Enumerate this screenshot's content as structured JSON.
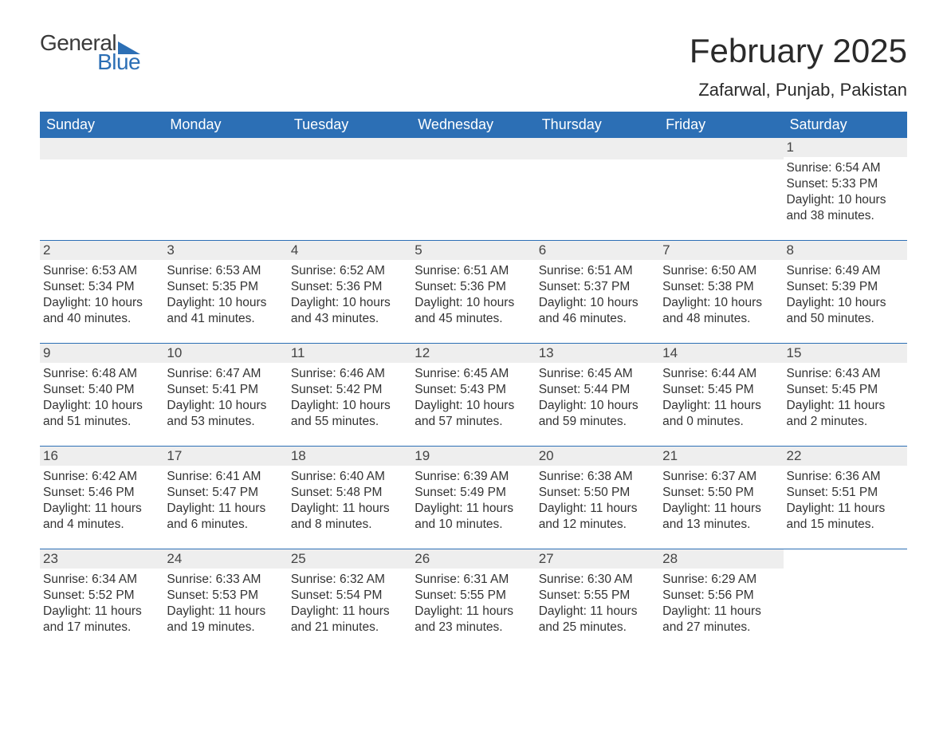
{
  "logo": {
    "text1": "General",
    "text2": "Blue"
  },
  "title": "February 2025",
  "location": "Zafarwal, Punjab, Pakistan",
  "colors": {
    "header_bg": "#2c6fb5",
    "header_fg": "#ffffff",
    "stripe_bg": "#eeeeee",
    "rule": "#2c6fb5",
    "text": "#333333",
    "page_bg": "#ffffff"
  },
  "typography": {
    "title_fontsize_pt": 32,
    "location_fontsize_pt": 17,
    "header_fontsize_pt": 14,
    "cell_fontsize_pt": 12,
    "daynum_fontsize_pt": 13
  },
  "weekday_headers": [
    "Sunday",
    "Monday",
    "Tuesday",
    "Wednesday",
    "Thursday",
    "Friday",
    "Saturday"
  ],
  "weeks": [
    [
      null,
      null,
      null,
      null,
      null,
      null,
      {
        "n": "1",
        "sunrise": "Sunrise: 6:54 AM",
        "sunset": "Sunset: 5:33 PM",
        "daylight": "Daylight: 10 hours and 38 minutes."
      }
    ],
    [
      {
        "n": "2",
        "sunrise": "Sunrise: 6:53 AM",
        "sunset": "Sunset: 5:34 PM",
        "daylight": "Daylight: 10 hours and 40 minutes."
      },
      {
        "n": "3",
        "sunrise": "Sunrise: 6:53 AM",
        "sunset": "Sunset: 5:35 PM",
        "daylight": "Daylight: 10 hours and 41 minutes."
      },
      {
        "n": "4",
        "sunrise": "Sunrise: 6:52 AM",
        "sunset": "Sunset: 5:36 PM",
        "daylight": "Daylight: 10 hours and 43 minutes."
      },
      {
        "n": "5",
        "sunrise": "Sunrise: 6:51 AM",
        "sunset": "Sunset: 5:36 PM",
        "daylight": "Daylight: 10 hours and 45 minutes."
      },
      {
        "n": "6",
        "sunrise": "Sunrise: 6:51 AM",
        "sunset": "Sunset: 5:37 PM",
        "daylight": "Daylight: 10 hours and 46 minutes."
      },
      {
        "n": "7",
        "sunrise": "Sunrise: 6:50 AM",
        "sunset": "Sunset: 5:38 PM",
        "daylight": "Daylight: 10 hours and 48 minutes."
      },
      {
        "n": "8",
        "sunrise": "Sunrise: 6:49 AM",
        "sunset": "Sunset: 5:39 PM",
        "daylight": "Daylight: 10 hours and 50 minutes."
      }
    ],
    [
      {
        "n": "9",
        "sunrise": "Sunrise: 6:48 AM",
        "sunset": "Sunset: 5:40 PM",
        "daylight": "Daylight: 10 hours and 51 minutes."
      },
      {
        "n": "10",
        "sunrise": "Sunrise: 6:47 AM",
        "sunset": "Sunset: 5:41 PM",
        "daylight": "Daylight: 10 hours and 53 minutes."
      },
      {
        "n": "11",
        "sunrise": "Sunrise: 6:46 AM",
        "sunset": "Sunset: 5:42 PM",
        "daylight": "Daylight: 10 hours and 55 minutes."
      },
      {
        "n": "12",
        "sunrise": "Sunrise: 6:45 AM",
        "sunset": "Sunset: 5:43 PM",
        "daylight": "Daylight: 10 hours and 57 minutes."
      },
      {
        "n": "13",
        "sunrise": "Sunrise: 6:45 AM",
        "sunset": "Sunset: 5:44 PM",
        "daylight": "Daylight: 10 hours and 59 minutes."
      },
      {
        "n": "14",
        "sunrise": "Sunrise: 6:44 AM",
        "sunset": "Sunset: 5:45 PM",
        "daylight": "Daylight: 11 hours and 0 minutes."
      },
      {
        "n": "15",
        "sunrise": "Sunrise: 6:43 AM",
        "sunset": "Sunset: 5:45 PM",
        "daylight": "Daylight: 11 hours and 2 minutes."
      }
    ],
    [
      {
        "n": "16",
        "sunrise": "Sunrise: 6:42 AM",
        "sunset": "Sunset: 5:46 PM",
        "daylight": "Daylight: 11 hours and 4 minutes."
      },
      {
        "n": "17",
        "sunrise": "Sunrise: 6:41 AM",
        "sunset": "Sunset: 5:47 PM",
        "daylight": "Daylight: 11 hours and 6 minutes."
      },
      {
        "n": "18",
        "sunrise": "Sunrise: 6:40 AM",
        "sunset": "Sunset: 5:48 PM",
        "daylight": "Daylight: 11 hours and 8 minutes."
      },
      {
        "n": "19",
        "sunrise": "Sunrise: 6:39 AM",
        "sunset": "Sunset: 5:49 PM",
        "daylight": "Daylight: 11 hours and 10 minutes."
      },
      {
        "n": "20",
        "sunrise": "Sunrise: 6:38 AM",
        "sunset": "Sunset: 5:50 PM",
        "daylight": "Daylight: 11 hours and 12 minutes."
      },
      {
        "n": "21",
        "sunrise": "Sunrise: 6:37 AM",
        "sunset": "Sunset: 5:50 PM",
        "daylight": "Daylight: 11 hours and 13 minutes."
      },
      {
        "n": "22",
        "sunrise": "Sunrise: 6:36 AM",
        "sunset": "Sunset: 5:51 PM",
        "daylight": "Daylight: 11 hours and 15 minutes."
      }
    ],
    [
      {
        "n": "23",
        "sunrise": "Sunrise: 6:34 AM",
        "sunset": "Sunset: 5:52 PM",
        "daylight": "Daylight: 11 hours and 17 minutes."
      },
      {
        "n": "24",
        "sunrise": "Sunrise: 6:33 AM",
        "sunset": "Sunset: 5:53 PM",
        "daylight": "Daylight: 11 hours and 19 minutes."
      },
      {
        "n": "25",
        "sunrise": "Sunrise: 6:32 AM",
        "sunset": "Sunset: 5:54 PM",
        "daylight": "Daylight: 11 hours and 21 minutes."
      },
      {
        "n": "26",
        "sunrise": "Sunrise: 6:31 AM",
        "sunset": "Sunset: 5:55 PM",
        "daylight": "Daylight: 11 hours and 23 minutes."
      },
      {
        "n": "27",
        "sunrise": "Sunrise: 6:30 AM",
        "sunset": "Sunset: 5:55 PM",
        "daylight": "Daylight: 11 hours and 25 minutes."
      },
      {
        "n": "28",
        "sunrise": "Sunrise: 6:29 AM",
        "sunset": "Sunset: 5:56 PM",
        "daylight": "Daylight: 11 hours and 27 minutes."
      },
      null
    ]
  ]
}
